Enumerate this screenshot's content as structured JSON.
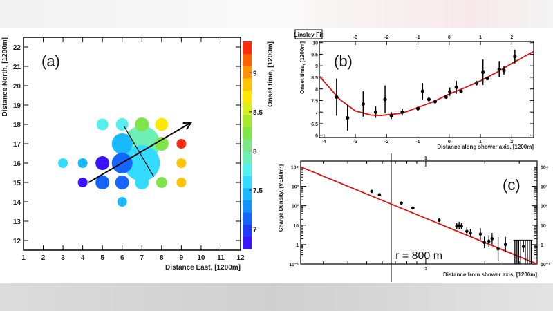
{
  "chart_data": [
    {
      "panel_label": "(a)",
      "type": "scatter",
      "xlabel": "Distance East, [1200m]",
      "ylabel": "Distance North, [1200m]",
      "colorbar_label": "Onset time, [1200m]",
      "xlim": [
        1,
        12
      ],
      "ylim": [
        11.5,
        22.5
      ],
      "xticks": [
        1,
        2,
        3,
        4,
        5,
        6,
        7,
        8,
        9,
        10,
        11,
        12
      ],
      "yticks": [
        12,
        13,
        14,
        15,
        16,
        17,
        18,
        19,
        20,
        21,
        22
      ],
      "colorbar_range": [
        6.75,
        9.4
      ],
      "colorbar_ticks": [
        "7",
        "7.5",
        "8",
        "8.5",
        "9"
      ],
      "colorbar_colors": [
        "#3a14ff",
        "#1f3cff",
        "#1466ff",
        "#1590ff",
        "#19b8ff",
        "#33dcff",
        "#55f0ee",
        "#6ef0b4",
        "#7ee68a",
        "#7fe64a",
        "#a6e82a",
        "#d8f020",
        "#ffe800",
        "#ffc400",
        "#ff9400",
        "#ff6000",
        "#ff2a10"
      ],
      "points": [
        {
          "x": 7,
          "y": 17,
          "time": 7.85,
          "signal": 5
        },
        {
          "x": 7,
          "y": 16,
          "time": 7.6,
          "signal": 5
        },
        {
          "x": 6,
          "y": 17,
          "time": 7.4,
          "signal": 3
        },
        {
          "x": 6,
          "y": 16,
          "time": 7.2,
          "signal": 3
        },
        {
          "x": 3,
          "y": 16,
          "time": 7.6,
          "signal": 1
        },
        {
          "x": 4,
          "y": 16,
          "time": 7.4,
          "signal": 1
        },
        {
          "x": 4,
          "y": 15,
          "time": 6.9,
          "signal": 1
        },
        {
          "x": 5,
          "y": 16,
          "time": 6.9,
          "signal": 2
        },
        {
          "x": 5,
          "y": 15,
          "time": 7.1,
          "signal": 2
        },
        {
          "x": 6,
          "y": 15,
          "time": 7.1,
          "signal": 2
        },
        {
          "x": 6,
          "y": 14,
          "time": 7.45,
          "signal": 1
        },
        {
          "x": 5,
          "y": 18,
          "time": 7.8,
          "signal": 1.5
        },
        {
          "x": 6,
          "y": 18,
          "time": 7.8,
          "signal": 1.7
        },
        {
          "x": 7,
          "y": 18,
          "time": 8.25,
          "signal": 2
        },
        {
          "x": 8,
          "y": 18,
          "time": 8.75,
          "signal": 1.8
        },
        {
          "x": 8,
          "y": 17,
          "time": 8.25,
          "signal": 2
        },
        {
          "x": 7,
          "y": 15,
          "time": 7.6,
          "signal": 2
        },
        {
          "x": 8,
          "y": 15,
          "time": 8.2,
          "signal": 1.3
        },
        {
          "x": 9,
          "y": 17,
          "time": 9.25,
          "signal": 1
        },
        {
          "x": 9,
          "y": 16,
          "time": 8.8,
          "signal": 1
        },
        {
          "x": 9,
          "y": 15,
          "time": 8.8,
          "signal": 1
        }
      ],
      "shower_axis_arrow": {
        "from": [
          4.3,
          15
        ],
        "to": [
          9.5,
          18.1
        ]
      },
      "shower_front_line": {
        "from": [
          6.1,
          17.9
        ],
        "to": [
          7.6,
          15.3
        ]
      }
    },
    {
      "panel_label": "(b)",
      "legend_box": "Linsley Fit",
      "type": "scatter",
      "xlabel": "Distance along shower axis, [1200m]",
      "ylabel": "Onset time, [1200m]",
      "xlim": [
        -4.15,
        2.7
      ],
      "ylim": [
        5.9,
        10.05
      ],
      "xticks": [
        -4,
        -3,
        -2,
        -1,
        0,
        1,
        2
      ],
      "top_xticks": [
        -3,
        -2,
        -1,
        0,
        1,
        2
      ],
      "yticks": [
        "6",
        "6.5",
        "7",
        "7.5",
        "8",
        "8.5",
        "9",
        "9.5",
        "10"
      ],
      "points": [
        {
          "x": -3.6,
          "y": 7.65,
          "err": 0.8
        },
        {
          "x": -3.25,
          "y": 6.75,
          "err": 0.55
        },
        {
          "x": -2.75,
          "y": 7.35,
          "err": 0.55
        },
        {
          "x": -2.35,
          "y": 7.0,
          "err": 0.25
        },
        {
          "x": -2.05,
          "y": 7.55,
          "err": 0.6
        },
        {
          "x": -1.85,
          "y": 6.85,
          "err": 0.15
        },
        {
          "x": -1.5,
          "y": 7.0,
          "err": 0.15
        },
        {
          "x": -1.0,
          "y": 7.15,
          "err": 0.05
        },
        {
          "x": -0.85,
          "y": 7.9,
          "err": 0.35
        },
        {
          "x": -0.65,
          "y": 7.55,
          "err": 0.12
        },
        {
          "x": -0.45,
          "y": 7.45,
          "err": 0.05
        },
        {
          "x": -0.1,
          "y": 7.65,
          "err": 0.05
        },
        {
          "x": 0.02,
          "y": 7.88,
          "err": 0.18
        },
        {
          "x": 0.23,
          "y": 8.07,
          "err": 0.28
        },
        {
          "x": 0.38,
          "y": 7.9,
          "err": 0.05
        },
        {
          "x": 0.88,
          "y": 8.25,
          "err": 0.1
        },
        {
          "x": 1.08,
          "y": 8.72,
          "err": 0.55
        },
        {
          "x": 1.22,
          "y": 8.45,
          "err": 0.05
        },
        {
          "x": 1.6,
          "y": 8.85,
          "err": 0.35
        },
        {
          "x": 1.75,
          "y": 8.8,
          "err": 0.18
        },
        {
          "x": 2.1,
          "y": 9.4,
          "err": 0.3
        }
      ],
      "fit": {
        "x": [
          -4.15,
          -3.5,
          -3,
          -2.5,
          -2.2,
          -1.5,
          -1,
          -0.5,
          0,
          0.5,
          1,
          1.5,
          2,
          2.7
        ],
        "y": [
          8.55,
          7.55,
          7.05,
          6.87,
          6.85,
          6.95,
          7.2,
          7.45,
          7.78,
          8.05,
          8.35,
          8.7,
          9.1,
          9.62
        ]
      },
      "fit_color": "#e01010"
    },
    {
      "panel_label": "(c)",
      "type": "scatter",
      "xscale": "log",
      "yscale": "log",
      "xlabel": "Distance from shower axis, [1200m]",
      "ylabel": "Charge Density, [VEM/m²]",
      "xlim": [
        0.23,
        3.7
      ],
      "ylim": [
        0.1,
        20000
      ],
      "xtick_labels": [
        {
          "v": 1,
          "t": "1"
        }
      ],
      "ytick_labels": [
        {
          "v": 10000,
          "t": "10⁴"
        },
        {
          "v": 1000,
          "t": "10³"
        },
        {
          "v": 100,
          "t": "10²"
        },
        {
          "v": 10,
          "t": "10"
        },
        {
          "v": 1,
          "t": "1"
        },
        {
          "v": 0.1,
          "t": "10⁻¹"
        }
      ],
      "points": [
        {
          "x": 0.53,
          "y": 550,
          "err": 0.08
        },
        {
          "x": 0.58,
          "y": 370,
          "err": 0.08
        },
        {
          "x": 0.75,
          "y": 138,
          "err": 0.08
        },
        {
          "x": 0.86,
          "y": 76,
          "err": 0.08
        },
        {
          "x": 1.17,
          "y": 18,
          "err": 0.1
        },
        {
          "x": 1.44,
          "y": 9,
          "err": 0.15
        },
        {
          "x": 1.48,
          "y": 9.5,
          "err": 0.2
        },
        {
          "x": 1.52,
          "y": 9,
          "err": 0.15
        },
        {
          "x": 1.62,
          "y": 4.8,
          "err": 0.2
        },
        {
          "x": 1.69,
          "y": 4,
          "err": 0.2
        },
        {
          "x": 1.9,
          "y": 3.5,
          "err": 0.3
        },
        {
          "x": 1.99,
          "y": 1.3,
          "err": 0.3
        },
        {
          "x": 2.1,
          "y": 1.5,
          "err": 0.3
        },
        {
          "x": 2.18,
          "y": 2.0,
          "err": 0.3
        },
        {
          "x": 2.34,
          "y": 0.6,
          "err": 0.6
        },
        {
          "x": 2.55,
          "y": 1.0,
          "err": 0.4
        },
        {
          "x": 3.15,
          "y": 0.8,
          "err": 0.3
        }
      ],
      "upper_limit_bars_x": [
        2.85,
        2.92,
        2.98,
        3.05,
        3.22,
        3.3,
        3.38,
        3.45
      ],
      "upper_limit_value": 1.7,
      "fit": {
        "x": [
          0.23,
          3.7
        ],
        "y": [
          10000,
          0.1
        ]
      },
      "fit_color": "#e01010",
      "reference_line": {
        "x": 0.667,
        "label": "r = 800 m"
      }
    }
  ]
}
